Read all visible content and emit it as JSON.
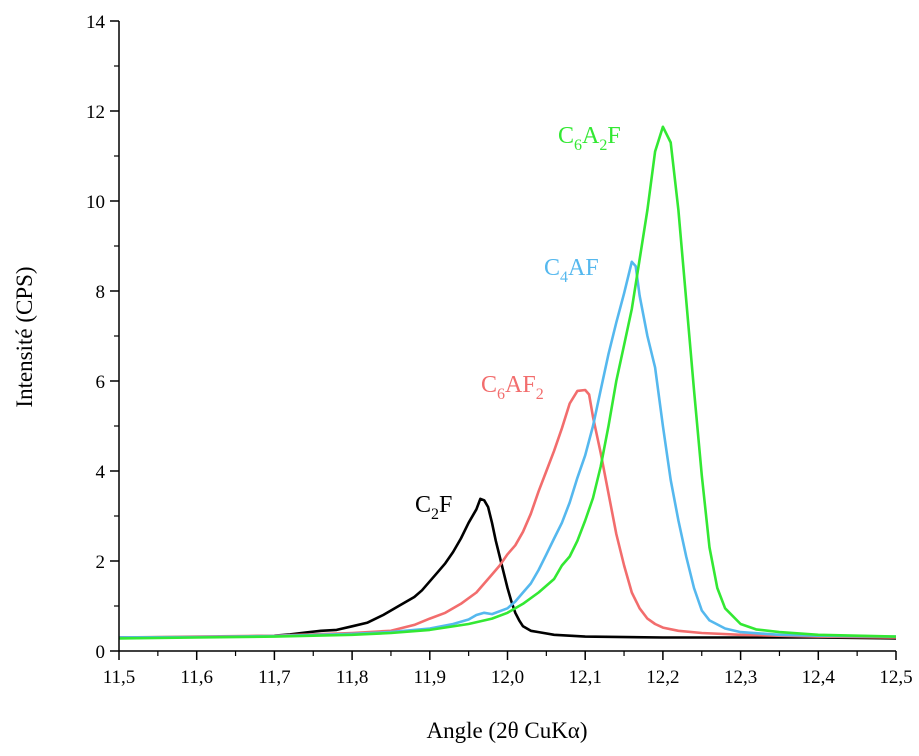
{
  "chart_data": {
    "type": "line",
    "title": "",
    "xlabel": "Angle (2θ CuKα)",
    "ylabel": "Intensité (CPS)",
    "xlim": [
      11.5,
      12.5
    ],
    "ylim": [
      0,
      14
    ],
    "x_ticks": [
      11.5,
      11.6,
      11.7,
      11.8,
      11.9,
      12.0,
      12.1,
      12.2,
      12.3,
      12.4,
      12.5
    ],
    "x_tick_labels": [
      "11,5",
      "11,6",
      "11,7",
      "11,8",
      "11,9",
      "12,0",
      "12,1",
      "12,2",
      "12,3",
      "12,4",
      "12,5"
    ],
    "y_ticks": [
      0,
      2,
      4,
      6,
      8,
      10,
      12,
      14
    ],
    "y_tick_labels": [
      "0",
      "2",
      "4",
      "6",
      "8",
      "10",
      "12",
      "14"
    ],
    "grid": false,
    "legend": "none",
    "series": [
      {
        "name": "C2F",
        "label_parts": [
          {
            "t": "C"
          },
          {
            "t": "2",
            "sub": true
          },
          {
            "t": "F"
          }
        ],
        "color": "#000000",
        "points": [
          [
            11.5,
            0.3
          ],
          [
            11.55,
            0.3
          ],
          [
            11.6,
            0.31
          ],
          [
            11.65,
            0.32
          ],
          [
            11.7,
            0.34
          ],
          [
            11.72,
            0.37
          ],
          [
            11.74,
            0.41
          ],
          [
            11.76,
            0.45
          ],
          [
            11.78,
            0.47
          ],
          [
            11.8,
            0.55
          ],
          [
            11.82,
            0.63
          ],
          [
            11.84,
            0.8
          ],
          [
            11.86,
            1.0
          ],
          [
            11.88,
            1.2
          ],
          [
            11.89,
            1.35
          ],
          [
            11.9,
            1.55
          ],
          [
            11.91,
            1.75
          ],
          [
            11.92,
            1.95
          ],
          [
            11.93,
            2.2
          ],
          [
            11.94,
            2.5
          ],
          [
            11.95,
            2.85
          ],
          [
            11.96,
            3.15
          ],
          [
            11.965,
            3.38
          ],
          [
            11.97,
            3.35
          ],
          [
            11.975,
            3.2
          ],
          [
            11.98,
            2.85
          ],
          [
            11.985,
            2.45
          ],
          [
            11.99,
            2.1
          ],
          [
            11.995,
            1.75
          ],
          [
            12.0,
            1.4
          ],
          [
            12.005,
            1.1
          ],
          [
            12.01,
            0.85
          ],
          [
            12.015,
            0.68
          ],
          [
            12.02,
            0.55
          ],
          [
            12.03,
            0.45
          ],
          [
            12.04,
            0.42
          ],
          [
            12.06,
            0.36
          ],
          [
            12.1,
            0.32
          ],
          [
            12.2,
            0.3
          ],
          [
            12.3,
            0.3
          ],
          [
            12.4,
            0.3
          ],
          [
            12.5,
            0.28
          ]
        ]
      },
      {
        "name": "C6AF2",
        "label_parts": [
          {
            "t": "C"
          },
          {
            "t": "6",
            "sub": true
          },
          {
            "t": "AF"
          },
          {
            "t": "2",
            "sub": true
          }
        ],
        "color": "#f26d6d",
        "points": [
          [
            11.5,
            0.3
          ],
          [
            11.6,
            0.32
          ],
          [
            11.7,
            0.34
          ],
          [
            11.8,
            0.4
          ],
          [
            11.85,
            0.45
          ],
          [
            11.88,
            0.58
          ],
          [
            11.9,
            0.72
          ],
          [
            11.92,
            0.85
          ],
          [
            11.94,
            1.05
          ],
          [
            11.96,
            1.3
          ],
          [
            11.97,
            1.5
          ],
          [
            11.98,
            1.7
          ],
          [
            11.99,
            1.9
          ],
          [
            12.0,
            2.15
          ],
          [
            12.01,
            2.35
          ],
          [
            12.02,
            2.65
          ],
          [
            12.03,
            3.05
          ],
          [
            12.04,
            3.55
          ],
          [
            12.05,
            4.0
          ],
          [
            12.06,
            4.45
          ],
          [
            12.07,
            4.95
          ],
          [
            12.08,
            5.5
          ],
          [
            12.09,
            5.78
          ],
          [
            12.1,
            5.8
          ],
          [
            12.105,
            5.7
          ],
          [
            12.11,
            5.2
          ],
          [
            12.12,
            4.4
          ],
          [
            12.13,
            3.5
          ],
          [
            12.14,
            2.6
          ],
          [
            12.15,
            1.9
          ],
          [
            12.16,
            1.3
          ],
          [
            12.17,
            0.95
          ],
          [
            12.18,
            0.72
          ],
          [
            12.19,
            0.6
          ],
          [
            12.2,
            0.52
          ],
          [
            12.22,
            0.45
          ],
          [
            12.25,
            0.4
          ],
          [
            12.3,
            0.36
          ],
          [
            12.4,
            0.32
          ],
          [
            12.5,
            0.3
          ]
        ]
      },
      {
        "name": "C4AF",
        "label_parts": [
          {
            "t": "C"
          },
          {
            "t": "4",
            "sub": true
          },
          {
            "t": "AF"
          }
        ],
        "color": "#55b8ee",
        "points": [
          [
            11.5,
            0.3
          ],
          [
            11.6,
            0.31
          ],
          [
            11.7,
            0.33
          ],
          [
            11.8,
            0.38
          ],
          [
            11.85,
            0.42
          ],
          [
            11.9,
            0.5
          ],
          [
            11.93,
            0.6
          ],
          [
            11.95,
            0.7
          ],
          [
            11.96,
            0.8
          ],
          [
            11.97,
            0.85
          ],
          [
            11.98,
            0.82
          ],
          [
            12.0,
            0.95
          ],
          [
            12.01,
            1.1
          ],
          [
            12.02,
            1.3
          ],
          [
            12.03,
            1.5
          ],
          [
            12.04,
            1.8
          ],
          [
            12.05,
            2.15
          ],
          [
            12.06,
            2.5
          ],
          [
            12.07,
            2.85
          ],
          [
            12.08,
            3.3
          ],
          [
            12.09,
            3.85
          ],
          [
            12.1,
            4.35
          ],
          [
            12.11,
            5.0
          ],
          [
            12.12,
            5.8
          ],
          [
            12.13,
            6.6
          ],
          [
            12.14,
            7.3
          ],
          [
            12.15,
            7.95
          ],
          [
            12.16,
            8.65
          ],
          [
            12.165,
            8.55
          ],
          [
            12.17,
            7.9
          ],
          [
            12.18,
            7.0
          ],
          [
            12.19,
            6.3
          ],
          [
            12.2,
            5.0
          ],
          [
            12.21,
            3.8
          ],
          [
            12.22,
            2.9
          ],
          [
            12.23,
            2.1
          ],
          [
            12.24,
            1.4
          ],
          [
            12.25,
            0.9
          ],
          [
            12.26,
            0.68
          ],
          [
            12.28,
            0.5
          ],
          [
            12.3,
            0.42
          ],
          [
            12.35,
            0.36
          ],
          [
            12.4,
            0.34
          ],
          [
            12.5,
            0.32
          ]
        ]
      },
      {
        "name": "C6A2F",
        "label_parts": [
          {
            "t": "C"
          },
          {
            "t": "6",
            "sub": true
          },
          {
            "t": "A"
          },
          {
            "t": "2",
            "sub": true
          },
          {
            "t": "F"
          }
        ],
        "color": "#33e833",
        "points": [
          [
            11.5,
            0.28
          ],
          [
            11.6,
            0.3
          ],
          [
            11.7,
            0.32
          ],
          [
            11.8,
            0.36
          ],
          [
            11.85,
            0.4
          ],
          [
            11.9,
            0.47
          ],
          [
            11.95,
            0.6
          ],
          [
            11.98,
            0.72
          ],
          [
            12.0,
            0.85
          ],
          [
            12.02,
            1.05
          ],
          [
            12.04,
            1.3
          ],
          [
            12.06,
            1.6
          ],
          [
            12.07,
            1.9
          ],
          [
            12.08,
            2.1
          ],
          [
            12.09,
            2.45
          ],
          [
            12.1,
            2.9
          ],
          [
            12.11,
            3.4
          ],
          [
            12.12,
            4.1
          ],
          [
            12.13,
            5.0
          ],
          [
            12.14,
            6.0
          ],
          [
            12.15,
            6.8
          ],
          [
            12.16,
            7.6
          ],
          [
            12.17,
            8.7
          ],
          [
            12.18,
            9.8
          ],
          [
            12.19,
            11.1
          ],
          [
            12.2,
            11.65
          ],
          [
            12.21,
            11.3
          ],
          [
            12.22,
            9.8
          ],
          [
            12.23,
            7.8
          ],
          [
            12.24,
            5.8
          ],
          [
            12.25,
            3.9
          ],
          [
            12.26,
            2.3
          ],
          [
            12.27,
            1.4
          ],
          [
            12.28,
            0.95
          ],
          [
            12.3,
            0.6
          ],
          [
            12.32,
            0.48
          ],
          [
            12.35,
            0.42
          ],
          [
            12.4,
            0.36
          ],
          [
            12.5,
            0.32
          ]
        ]
      }
    ]
  }
}
